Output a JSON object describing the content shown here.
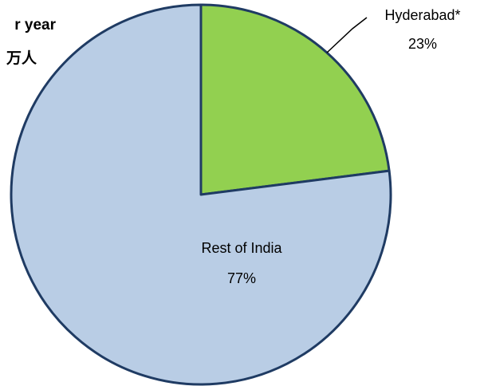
{
  "chart_data": {
    "type": "pie",
    "title_lines": [
      "r year",
      "万人"
    ],
    "categories": [
      "Hyderabad*",
      "Rest of India"
    ],
    "values": [
      23,
      77
    ],
    "value_labels": [
      "23%",
      "77%"
    ],
    "colors": [
      "#92d050",
      "#b9cde5"
    ],
    "edge_color": "#1f3b63"
  }
}
